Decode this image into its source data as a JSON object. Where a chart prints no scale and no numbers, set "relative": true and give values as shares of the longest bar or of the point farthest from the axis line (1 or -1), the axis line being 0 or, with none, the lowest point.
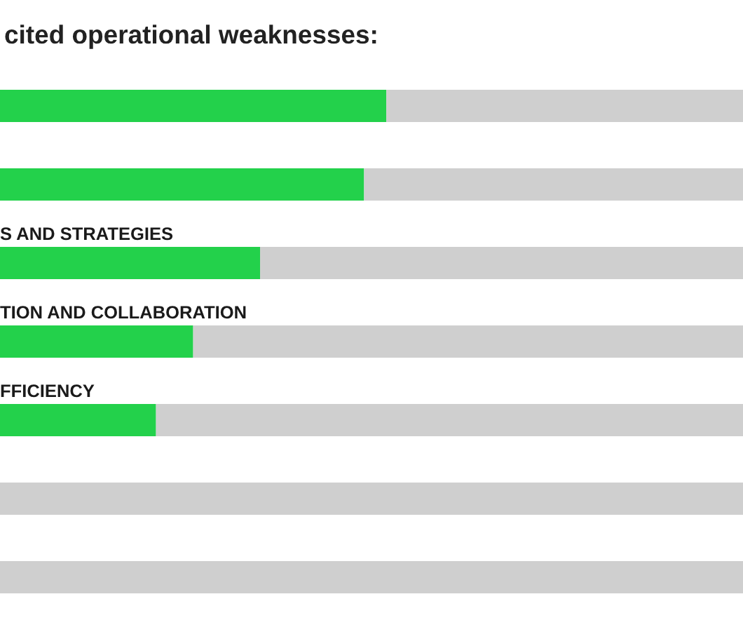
{
  "chart_data": {
    "type": "bar",
    "orientation": "horizontal",
    "stacked": true,
    "relative": true,
    "title": "cited operational weaknesses:",
    "categories": [
      null,
      null,
      "S AND STRATEGIES",
      "TION AND COLLABORATION",
      "FFICIENCY",
      null,
      null
    ],
    "series": [
      {
        "color": "#23d14b",
        "values": [
          0.52,
          0.49,
          0.35,
          0.26,
          0.21,
          null,
          null
        ]
      },
      {
        "color": "#cfcfcf",
        "values": [
          0.48,
          0.51,
          0.65,
          0.74,
          0.79,
          1,
          1
        ]
      }
    ]
  }
}
